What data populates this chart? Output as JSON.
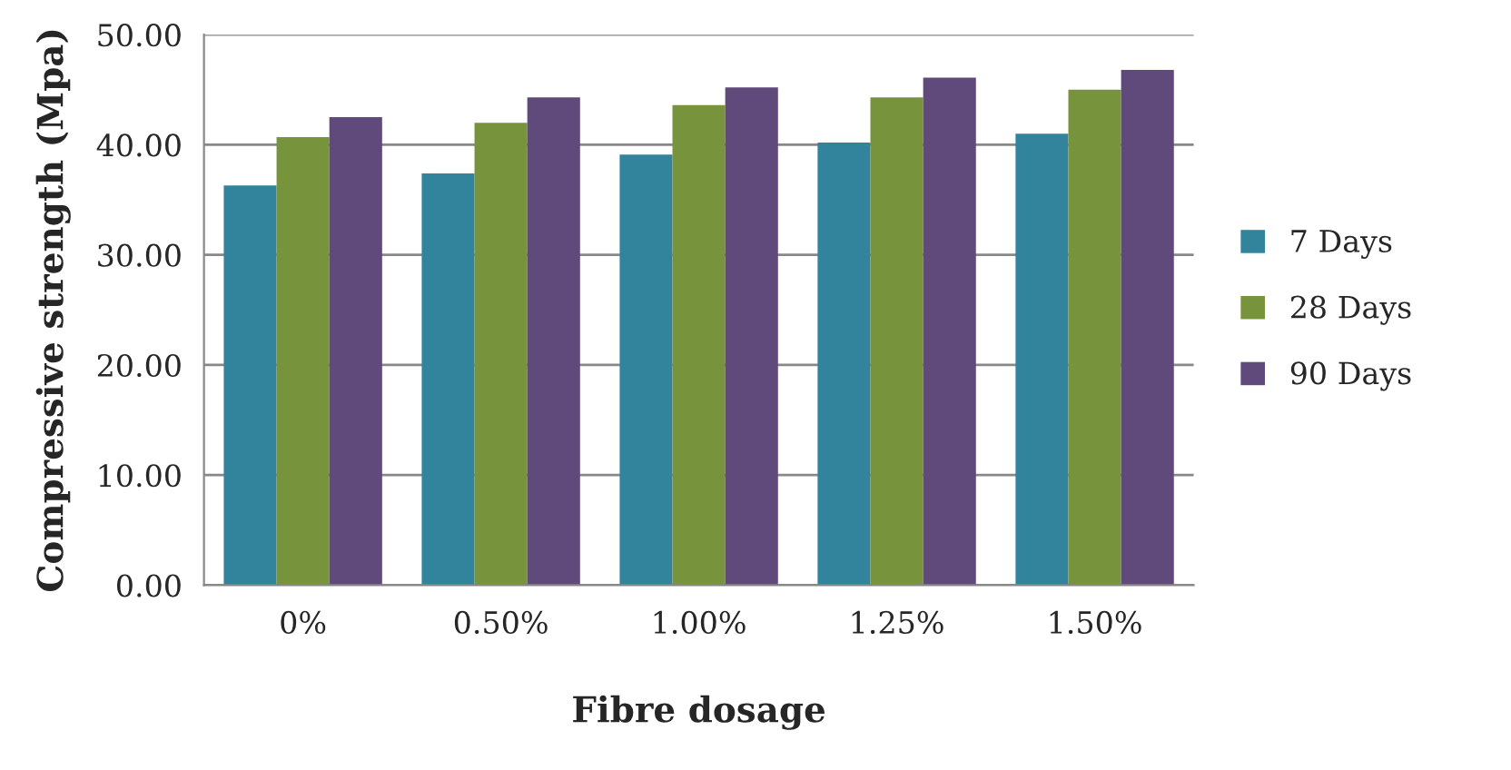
{
  "chart_data": {
    "type": "bar",
    "xlabel": "Fibre dosage",
    "ylabel": "Compressive strength (Mpa)",
    "categories": [
      "0%",
      "0.50%",
      "1.00%",
      "1.25%",
      "1.50%"
    ],
    "series": [
      {
        "name": "7 Days",
        "color": "#31849b",
        "values": [
          36.3,
          37.4,
          39.1,
          40.2,
          41.0
        ]
      },
      {
        "name": "28 Days",
        "color": "#77933c",
        "values": [
          40.7,
          42.0,
          43.6,
          44.3,
          45.0
        ]
      },
      {
        "name": "90 Days",
        "color": "#604a7b",
        "values": [
          42.5,
          44.3,
          45.2,
          46.1,
          46.8
        ]
      }
    ],
    "ylim": [
      0,
      50
    ],
    "yticks": [
      {
        "value": 0,
        "label": "0.00"
      },
      {
        "value": 10,
        "label": "10.00"
      },
      {
        "value": 20,
        "label": "20.00"
      },
      {
        "value": 30,
        "label": "30.00"
      },
      {
        "value": 40,
        "label": "40.00"
      },
      {
        "value": 50,
        "label": "50.00"
      }
    ],
    "grid": "y",
    "legend": "right"
  }
}
